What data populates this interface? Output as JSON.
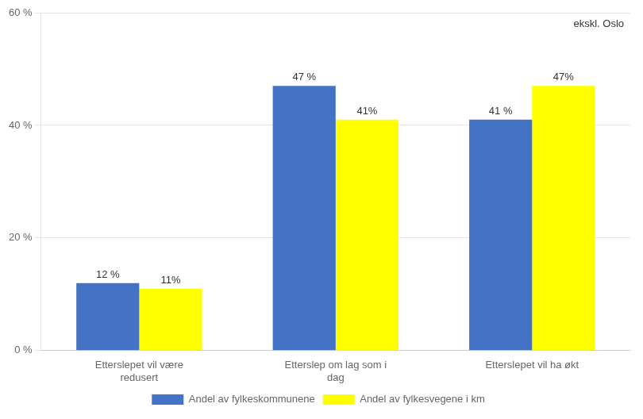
{
  "chart_data": {
    "type": "bar",
    "categories": [
      "Etterslepet vil være\nredusert",
      "Etterslep om lag som i\ndag",
      "Etterslepet vil ha økt"
    ],
    "series": [
      {
        "name": "Andel av fylkeskommunene",
        "color": "#4472C4",
        "values": [
          12,
          47,
          41
        ],
        "value_labels": [
          "12 %",
          "47 %",
          "41 %"
        ]
      },
      {
        "name": "Andel av fylkesvegene i km",
        "color": "#FFFF00",
        "values": [
          11,
          41,
          47
        ],
        "value_labels": [
          "11%",
          "41%",
          "47%"
        ]
      }
    ],
    "ylim": [
      0,
      60
    ],
    "yticks": [
      {
        "value": 0,
        "label": "0 %"
      },
      {
        "value": 20,
        "label": "20 %"
      },
      {
        "value": 40,
        "label": "40 %"
      },
      {
        "value": 60,
        "label": "60 %"
      }
    ],
    "annotation": "ekskl. Oslo",
    "data_labels": true,
    "grid": true,
    "legend": "bottom"
  }
}
